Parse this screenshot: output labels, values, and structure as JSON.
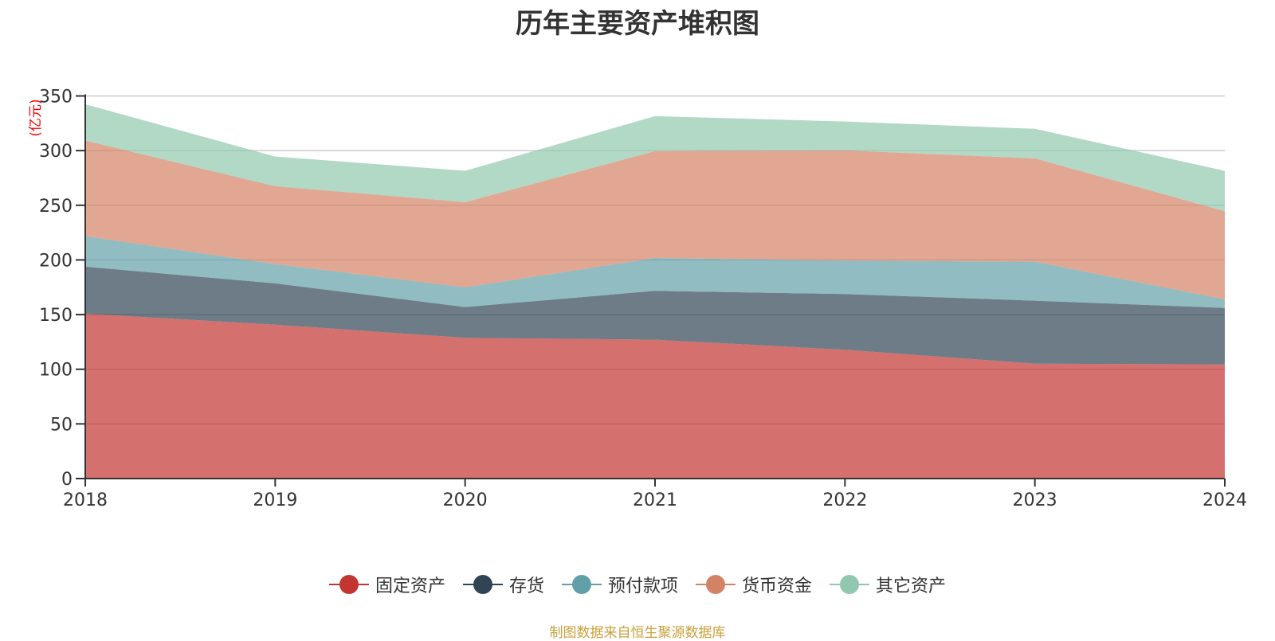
{
  "chart_data": {
    "type": "area",
    "stacked": true,
    "title": "历年主要资产堆积图",
    "ylabel": "(亿元)",
    "xlabel": "",
    "categories": [
      "2018",
      "2019",
      "2020",
      "2021",
      "2022",
      "2023",
      "2024"
    ],
    "ylim": [
      0,
      350
    ],
    "yticks": [
      "0",
      "50",
      "100",
      "150",
      "200",
      "250",
      "300",
      "350"
    ],
    "grid": true,
    "legend_position": "bottom-center",
    "series": [
      {
        "name": "固定资产",
        "color": "#c23531",
        "values": [
          150.8,
          140.8,
          128.7,
          127.0,
          117.8,
          105.1,
          104.4
        ]
      },
      {
        "name": "存货",
        "color": "#2f4554",
        "values": [
          43.0,
          37.7,
          28.2,
          44.7,
          51.0,
          57.6,
          51.7
        ]
      },
      {
        "name": "预付款项",
        "color": "#61a0a8",
        "values": [
          27.9,
          17.7,
          18.0,
          30.1,
          30.6,
          35.7,
          7.8
        ]
      },
      {
        "name": "货币资金",
        "color": "#d48265",
        "values": [
          87.5,
          71.2,
          77.9,
          97.7,
          100.8,
          94.5,
          80.7
        ]
      },
      {
        "name": "其它资产",
        "color": "#91c7ae",
        "values": [
          33.2,
          27.2,
          28.7,
          32.0,
          26.4,
          27.0,
          36.9
        ]
      }
    ]
  },
  "source_note": "制图数据来自恒生聚源数据库"
}
